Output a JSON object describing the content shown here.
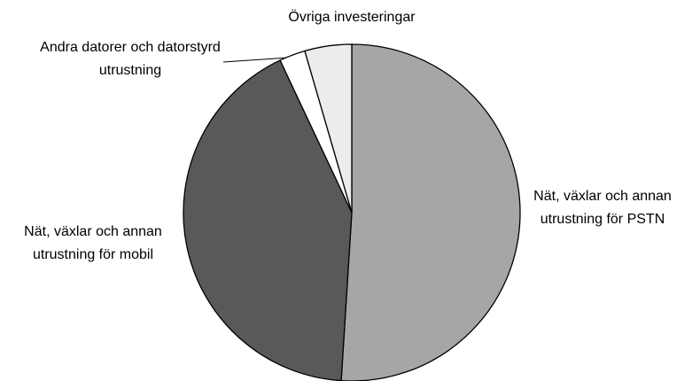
{
  "chart_data": {
    "type": "pie",
    "categories": [
      "Nät, växlar och annan utrustning för PSTN",
      "Nät, växlar och annan utrustning för mobil",
      "Andra datorer och datorstyrd utrustning",
      "Övriga investeringar"
    ],
    "values": [
      51,
      42,
      2.5,
      4.5
    ],
    "colors": [
      "#a6a6a6",
      "#595959",
      "#ffffff",
      "#ececec"
    ]
  }
}
